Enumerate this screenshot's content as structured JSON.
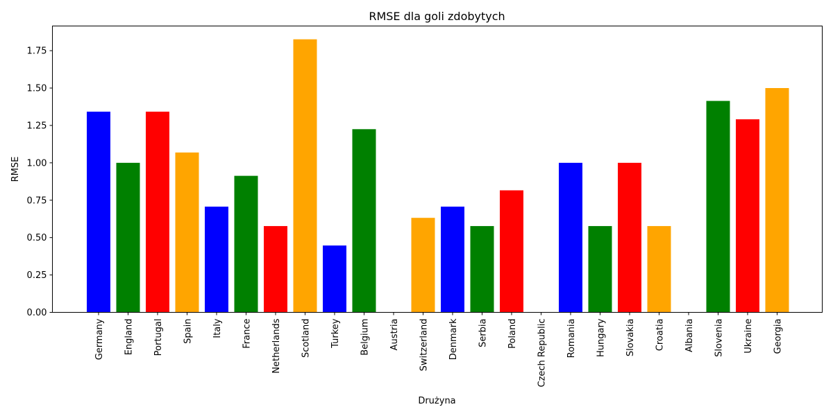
{
  "chart_data": {
    "type": "bar",
    "title": "RMSE dla goli zdobytych",
    "xlabel": "Drużyna",
    "ylabel": "RMSE",
    "ylim": [
      0,
      1.915
    ],
    "yticks": [
      0.0,
      0.25,
      0.5,
      0.75,
      1.0,
      1.25,
      1.5,
      1.75
    ],
    "ytick_labels": [
      "0.00",
      "0.25",
      "0.50",
      "0.75",
      "1.00",
      "1.25",
      "1.50",
      "1.75"
    ],
    "grid": false,
    "categories": [
      "Germany",
      "England",
      "Portugal",
      "Spain",
      "Italy",
      "France",
      "Netherlands",
      "Scotland",
      "Turkey",
      "Belgium",
      "Austria",
      "Switzerland",
      "Denmark",
      "Serbia",
      "Poland",
      "Czech Republic",
      "Romania",
      "Hungary",
      "Slovakia",
      "Croatia",
      "Albania",
      "Slovenia",
      "Ukraine",
      "Georgia"
    ],
    "values": [
      1.342,
      1.0,
      1.342,
      1.069,
      0.707,
      0.913,
      0.577,
      1.826,
      0.447,
      1.225,
      0.0,
      0.632,
      0.707,
      0.577,
      0.816,
      0.0,
      1.0,
      0.577,
      1.0,
      0.577,
      0.0,
      1.414,
      1.291,
      1.5
    ],
    "colors": [
      "#0000ff",
      "#008000",
      "#ff0000",
      "#ffa500"
    ]
  }
}
